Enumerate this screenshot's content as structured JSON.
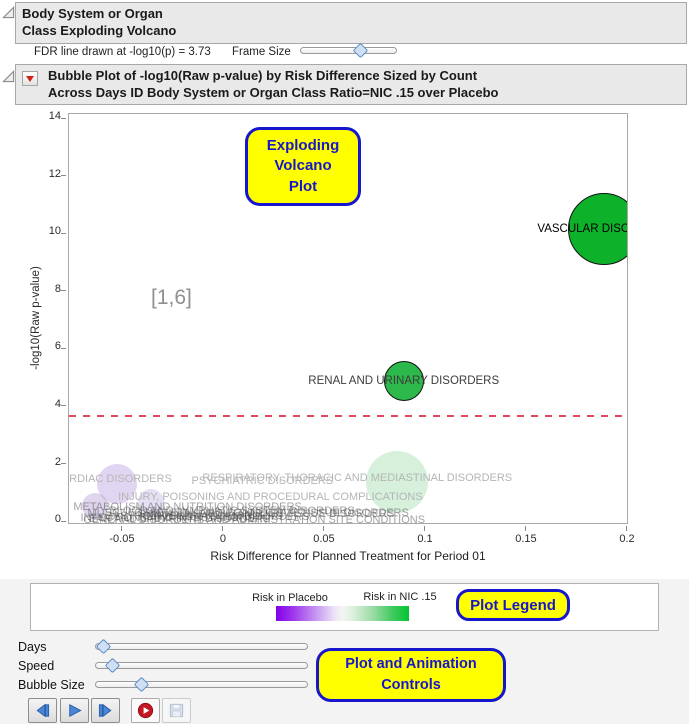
{
  "header1": {
    "line1": "Body System or Organ",
    "line2": "Class Exploding Volcano"
  },
  "fdr": {
    "text": "FDR line drawn at -log10(p) = 3.73",
    "frame_size_label": "Frame Size",
    "frame_size_pct": 63
  },
  "header2": {
    "line1": "Bubble Plot of -log10(Raw p-value) by Risk Difference Sized by Count",
    "line2": "Across Days ID Body System or Organ Class Ratio=NIC .15 over Placebo"
  },
  "chart_data": {
    "type": "scatter",
    "subtype": "bubble",
    "xlabel": "Risk Difference for Planned Treatment for Period 01",
    "ylabel": "-log10(Raw p-value)",
    "xlim": [
      -0.0767,
      0.2005
    ],
    "ylim": [
      -0.1,
      14.18
    ],
    "grid": false,
    "x_ticks": [
      {
        "v": -0.05,
        "label": "-0.05"
      },
      {
        "v": 0,
        "label": "0"
      },
      {
        "v": 0.05,
        "label": "0.05"
      },
      {
        "v": 0.1,
        "label": "0.1"
      },
      {
        "v": 0.15,
        "label": "0.15"
      },
      {
        "v": 0.2,
        "label": "0.2"
      }
    ],
    "y_ticks": [
      {
        "v": 0,
        "label": "0"
      },
      {
        "v": 2,
        "label": "2"
      },
      {
        "v": 4,
        "label": "4"
      },
      {
        "v": 6,
        "label": "6"
      },
      {
        "v": 8,
        "label": "8"
      },
      {
        "v": 10,
        "label": "10"
      },
      {
        "v": 12,
        "label": "12"
      },
      {
        "v": 14,
        "label": "14"
      }
    ],
    "fdr_line": {
      "y": 3.73,
      "color": "#e0485c",
      "style": "dashed"
    },
    "frame_indicator": {
      "text": "[1,6]",
      "x": -0.026,
      "y": 7.8
    },
    "bubbles": [
      {
        "label": "VASCULAR DISORDERS",
        "x": 0.188,
        "y": 10.2,
        "r": 36,
        "fill": "#0eb12a",
        "stroke": "#111111",
        "label_color": "#000000"
      },
      {
        "label": "RENAL AND URINARY DISORDERS",
        "x": 0.089,
        "y": 4.9,
        "r": 20,
        "fill": "#2db84b",
        "stroke": "#111111",
        "label_color": "#3c3c3c"
      }
    ],
    "faded_bubbles": [
      {
        "x": -0.053,
        "y": 1.32,
        "r": 20,
        "fill": "rgba(164,130,211,0.33)"
      },
      {
        "x": -0.036,
        "y": 0.7,
        "r": 13,
        "fill": "rgba(164,130,211,0.26)"
      },
      {
        "x": -0.064,
        "y": 0.56,
        "r": 13,
        "fill": "rgba(150,120,200,0.30)"
      },
      {
        "x": 0.0856,
        "y": 1.39,
        "r": 31,
        "fill": "rgba(118,204,138,0.30)"
      }
    ],
    "faded_labels": [
      {
        "text": "CARDIAC DISORDERS",
        "x": -0.055,
        "y": 1.49,
        "tier": 1
      },
      {
        "text": "PSYCHIATRIC DISORDERS",
        "x": 0.019,
        "y": 1.42,
        "tier": 1
      },
      {
        "text": "RESPIRATORY, THORACIC AND MEDIASTINAL DISORDERS",
        "x": 0.066,
        "y": 1.53,
        "tier": 1
      },
      {
        "text": "INJURY, POISONING AND PROCEDURAL COMPLICATIONS",
        "x": 0.023,
        "y": 0.87,
        "tier": 1
      },
      {
        "text": "METABOLISM AND NUTRITION DISORDERS",
        "x": -0.018,
        "y": 0.52,
        "tier": 2
      },
      {
        "text": "BLOOD AND LYMPHATIC SYSTEM DISORDERS",
        "x": 0.004,
        "y": 0.4,
        "tier": 2
      },
      {
        "text": "MUSCULOSKELETAL AND CONNECTIVE TISSUE DISORDERS",
        "x": 0.012,
        "y": 0.33,
        "tier": 2
      },
      {
        "text": "SKIN AND SUBCUTANEOUS TISSUE DISORDERS",
        "x": 0.021,
        "y": 0.27,
        "tier": 2
      },
      {
        "text": "GASTROINTESTINAL DISORDERS",
        "x": -0.015,
        "y": 0.22,
        "tier": 2
      },
      {
        "text": "NERVOUS SYSTEM DISORDERS",
        "x": 0.0,
        "y": 0.18,
        "tier": 2
      },
      {
        "text": "INFECTIONS AND INFESTATIONS",
        "x": -0.028,
        "y": 0.14,
        "tier": 2
      },
      {
        "text": "EAR AND LABYRINTH DISORDERS",
        "x": -0.022,
        "y": 0.1,
        "tier": 2
      },
      {
        "text": "GENERAL DISORDERS AND ADMINISTRATION SITE CONDITIONS",
        "x": 0.015,
        "y": 0.07,
        "tier": 2
      }
    ]
  },
  "callouts": {
    "volcano": {
      "l1": "Exploding",
      "l2": "Volcano",
      "l3": "Plot"
    },
    "legend": "Plot Legend",
    "controls": {
      "l1": "Plot and Animation",
      "l2": "Controls"
    },
    "fill": "#ffff00",
    "border": "#1616cc",
    "text_color": "#1616cc"
  },
  "legend": {
    "left_label": "Risk in Placebo",
    "right_label": "Risk in NIC .15",
    "gradient_left": "#8400e8",
    "gradient_right": "#00c531"
  },
  "controls": {
    "sliders": [
      {
        "label": "Days",
        "pct": 4
      },
      {
        "label": "Speed",
        "pct": 8
      },
      {
        "label": "Bubble Size",
        "pct": 22
      }
    ],
    "buttons": [
      {
        "icon": "step-back-icon"
      },
      {
        "icon": "play-icon"
      },
      {
        "icon": "step-forward-icon"
      },
      {
        "icon": "record-icon"
      },
      {
        "icon": "save-icon",
        "disabled": true
      }
    ]
  }
}
